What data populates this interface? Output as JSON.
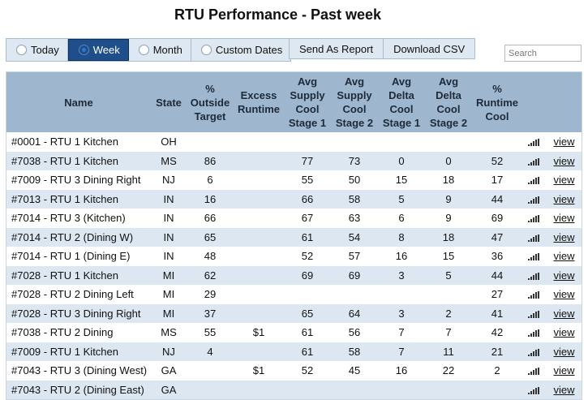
{
  "title": "RTU Performance - Past week",
  "ranges": [
    {
      "label": "Today",
      "active": false
    },
    {
      "label": "Week",
      "active": true
    },
    {
      "label": "Month",
      "active": false
    },
    {
      "label": "Custom Dates",
      "active": false
    }
  ],
  "actions": {
    "send_report": "Send As Report",
    "download_csv": "Download CSV"
  },
  "search": {
    "placeholder": "Search"
  },
  "table": {
    "headers": {
      "name": "Name",
      "state": "State",
      "outside": "% Outside Target",
      "excess": "Excess Runtime",
      "avg_supply_1": "Avg Supply Cool Stage 1",
      "avg_supply_2": "Avg Supply Cool Stage 2",
      "avg_delta_1": "Avg Delta Cool Stage 1",
      "avg_delta_2": "Avg Delta Cool Stage 2",
      "runtime": "% Runtime Cool"
    },
    "view_label": "view",
    "rows": [
      {
        "name": "#0001 - RTU 1 Kitchen",
        "state": "OH",
        "outside": "",
        "excess": "",
        "s1": "",
        "s2": "",
        "d1": "",
        "d2": "",
        "runtime": ""
      },
      {
        "name": "#7038 - RTU 1 Kitchen",
        "state": "MS",
        "outside": "86",
        "excess": "",
        "s1": "77",
        "s2": "73",
        "d1": "0",
        "d2": "0",
        "runtime": "52"
      },
      {
        "name": "#7009 - RTU 3 Dining Right",
        "state": "NJ",
        "outside": "6",
        "excess": "",
        "s1": "55",
        "s2": "50",
        "d1": "15",
        "d2": "18",
        "runtime": "17"
      },
      {
        "name": "#7013 - RTU 1 Kitchen",
        "state": "IN",
        "outside": "16",
        "excess": "",
        "s1": "66",
        "s2": "58",
        "d1": "5",
        "d2": "9",
        "runtime": "44"
      },
      {
        "name": "#7014 - RTU 3 (Kitchen)",
        "state": "IN",
        "outside": "66",
        "excess": "",
        "s1": "67",
        "s2": "63",
        "d1": "6",
        "d2": "9",
        "runtime": "69"
      },
      {
        "name": "#7014 - RTU 2 (Dining W)",
        "state": "IN",
        "outside": "65",
        "excess": "",
        "s1": "61",
        "s2": "54",
        "d1": "8",
        "d2": "18",
        "runtime": "47"
      },
      {
        "name": "#7014 - RTU 1 (Dining E)",
        "state": "IN",
        "outside": "48",
        "excess": "",
        "s1": "52",
        "s2": "57",
        "d1": "16",
        "d2": "15",
        "runtime": "36"
      },
      {
        "name": "#7028 - RTU 1 Kitchen",
        "state": "MI",
        "outside": "62",
        "excess": "",
        "s1": "69",
        "s2": "69",
        "d1": "3",
        "d2": "5",
        "runtime": "44"
      },
      {
        "name": "#7028 - RTU 2 Dining Left",
        "state": "MI",
        "outside": "29",
        "excess": "",
        "s1": "",
        "s2": "",
        "d1": "",
        "d2": "",
        "runtime": "27"
      },
      {
        "name": "#7028 - RTU 3 Dining Right",
        "state": "MI",
        "outside": "37",
        "excess": "",
        "s1": "65",
        "s2": "64",
        "d1": "3",
        "d2": "2",
        "runtime": "41"
      },
      {
        "name": "#7038 - RTU 2 Dining",
        "state": "MS",
        "outside": "55",
        "excess": "$1",
        "s1": "61",
        "s2": "56",
        "d1": "7",
        "d2": "7",
        "runtime": "42"
      },
      {
        "name": "#7009 - RTU 1 Kitchen",
        "state": "NJ",
        "outside": "4",
        "excess": "",
        "s1": "61",
        "s2": "58",
        "d1": "7",
        "d2": "11",
        "runtime": "21"
      },
      {
        "name": "#7043 - RTU 3 (Dining West)",
        "state": "GA",
        "outside": "",
        "excess": "$1",
        "s1": "52",
        "s2": "45",
        "d1": "16",
        "d2": "22",
        "runtime": "2"
      },
      {
        "name": "#7043 - RTU 2 (Dining East)",
        "state": "GA",
        "outside": "",
        "excess": "",
        "s1": "",
        "s2": "",
        "d1": "",
        "d2": "",
        "runtime": ""
      }
    ]
  }
}
